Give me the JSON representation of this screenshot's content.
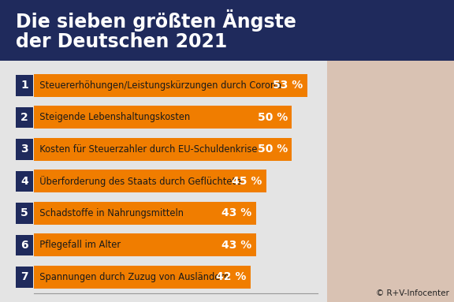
{
  "chart_data": {
    "type": "bar",
    "orientation": "horizontal",
    "title": "Die sieben größten Ängste\nder Deutschen 2021",
    "ranks": [
      1,
      2,
      3,
      4,
      5,
      6,
      7
    ],
    "categories": [
      "Steuererhöhungen/Leistungskürzungen durch Corona",
      "Steigende Lebenshaltungskosten",
      "Kosten für Steuerzahler durch EU-Schuldenkrise",
      "Überforderung des Staats durch Geflüchtete",
      "Schadstoffe in Nahrungsmitteln",
      "Pflegefall im Alter",
      "Spannungen durch Zuzug von Ausländern"
    ],
    "values": [
      53,
      50,
      50,
      45,
      43,
      43,
      42
    ],
    "value_labels": [
      "53 %",
      "50 %",
      "50 %",
      "45 %",
      "43 %",
      "43 %",
      "42 %"
    ],
    "data_labels": true,
    "tick_labels": false,
    "grid": false,
    "color": "#f07d00",
    "xlim": [
      0,
      55
    ],
    "source": "© R+V-Infocenter"
  }
}
